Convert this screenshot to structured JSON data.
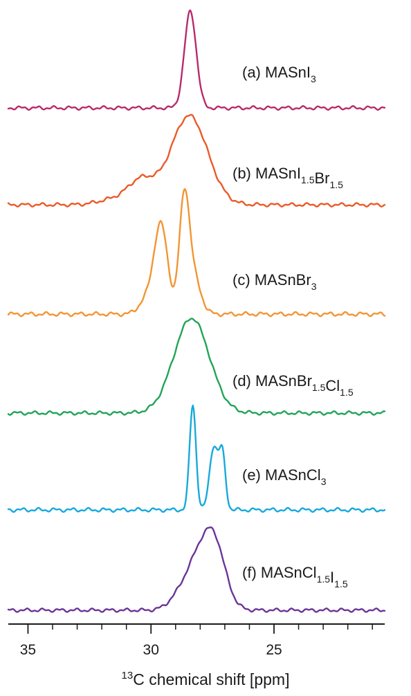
{
  "chart_data": {
    "type": "line",
    "title": "",
    "xlabel": {
      "sup": "13",
      "text": "C chemical shift [ppm]"
    },
    "ylabel": "",
    "xlim": [
      35.8,
      20.5
    ],
    "x_reversed": true,
    "ticks": {
      "major": [
        35,
        30,
        25
      ],
      "major_labels": [
        "35",
        "30",
        "25"
      ],
      "minor": [
        34,
        33,
        32,
        31,
        29,
        28,
        27,
        26,
        24,
        23,
        22,
        21
      ]
    },
    "grid": false,
    "legend": "none",
    "series": [
      {
        "label_parts": [
          {
            "t": "(a) MASnI"
          },
          {
            "t": "3",
            "sub": true
          }
        ],
        "color": "#b92a6c",
        "peaks": [
          {
            "center": 28.4,
            "height": 1.0,
            "width": 0.24
          }
        ]
      },
      {
        "label_parts": [
          {
            "t": "(b) MASnI"
          },
          {
            "t": "1.5",
            "sub": true
          },
          {
            "t": "Br"
          },
          {
            "t": "1.5",
            "sub": true
          }
        ],
        "color": "#ea5a28",
        "peaks": [
          {
            "center": 28.45,
            "height": 0.92,
            "width": 0.75
          },
          {
            "center": 30.4,
            "height": 0.25,
            "width": 0.55
          },
          {
            "center": 31.6,
            "height": 0.05,
            "width": 0.6
          }
        ]
      },
      {
        "label_parts": [
          {
            "t": "(c) MASnBr"
          },
          {
            "t": "3",
            "sub": true
          }
        ],
        "color": "#f29532",
        "peaks": [
          {
            "center": 29.6,
            "height": 0.82,
            "width": 0.28
          },
          {
            "center": 28.65,
            "height": 0.97,
            "width": 0.2
          },
          {
            "center": 28.3,
            "height": 0.35,
            "width": 0.3
          },
          {
            "center": 30.2,
            "height": 0.12,
            "width": 0.3
          }
        ]
      },
      {
        "label_parts": [
          {
            "t": "(d) MASnBr"
          },
          {
            "t": "1.5",
            "sub": true
          },
          {
            "t": "Cl"
          },
          {
            "t": "1.5",
            "sub": true
          }
        ],
        "color": "#20a456",
        "peaks": [
          {
            "center": 28.35,
            "height": 0.98,
            "width": 0.72
          }
        ]
      },
      {
        "label_parts": [
          {
            "t": "(e) MASnCl"
          },
          {
            "t": "3",
            "sub": true
          }
        ],
        "color": "#16a9db",
        "peaks": [
          {
            "center": 28.3,
            "height": 1.0,
            "width": 0.13
          },
          {
            "center": 27.45,
            "height": 0.6,
            "width": 0.17
          },
          {
            "center": 27.1,
            "height": 0.52,
            "width": 0.13
          }
        ]
      },
      {
        "label_parts": [
          {
            "t": "(f) MASnCl"
          },
          {
            "t": "1.5",
            "sub": true
          },
          {
            "t": "I"
          },
          {
            "t": "1.5",
            "sub": true
          }
        ],
        "color": "#6a3597",
        "peaks": [
          {
            "center": 27.5,
            "height": 0.78,
            "width": 0.48
          },
          {
            "center": 28.3,
            "height": 0.35,
            "width": 0.45
          },
          {
            "center": 29.0,
            "height": 0.08,
            "width": 0.4
          }
        ]
      }
    ]
  }
}
